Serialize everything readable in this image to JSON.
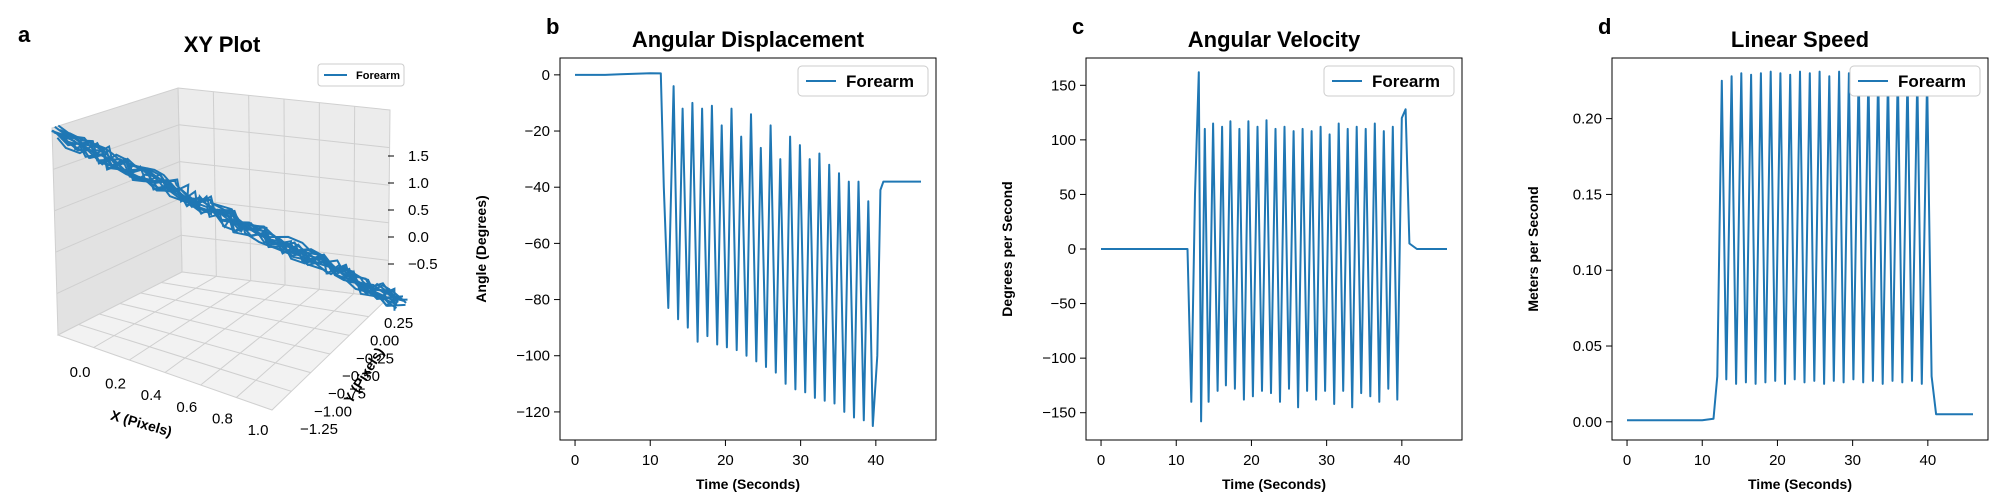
{
  "colors": {
    "series": "#1f77b4",
    "axis": "#000000",
    "pane": "#f2f2f2"
  },
  "chart_data": [
    {
      "panel_letter": "a",
      "type": "line",
      "projection": "3d",
      "title": "XY Plot",
      "xlabel": "X (Pixels)",
      "ylabel": "Y (Pixels)",
      "zlabel": "",
      "xticks": [
        "0.0",
        "0.2",
        "0.4",
        "0.6",
        "0.8",
        "1.0"
      ],
      "yticks": [
        "0.25",
        "0.00",
        "-0.25",
        "-0.50",
        "-0.75",
        "-1.00",
        "-1.25"
      ],
      "zticks": [
        "1.5",
        "1.0",
        "0.5",
        "0.0",
        "-0.5"
      ],
      "xlim": [
        0,
        1
      ],
      "ylim": [
        -1.25,
        0.25
      ],
      "zlim": [
        -0.5,
        1.5
      ],
      "legend": {
        "position": "top-right",
        "entries": [
          "Forearm"
        ]
      },
      "series": [
        {
          "name": "Forearm",
          "x": [
            0.0,
            0.1,
            0.2,
            0.3,
            0.4,
            0.5,
            0.6,
            0.7,
            0.8,
            0.9,
            1.0
          ],
          "y": [
            0.1,
            0.0,
            -0.1,
            -0.2,
            -0.3,
            -0.45,
            -0.6,
            -0.75,
            -0.9,
            -1.05,
            -1.2
          ],
          "z": [
            1.3,
            1.15,
            1.0,
            0.85,
            0.7,
            0.5,
            0.35,
            0.2,
            0.05,
            -0.15,
            -0.3
          ]
        }
      ]
    },
    {
      "panel_letter": "b",
      "type": "line",
      "title": "Angular Displacement",
      "xlabel": "Time (Seconds)",
      "ylabel": "Angle (Degrees)",
      "xlim": [
        -2,
        48
      ],
      "ylim": [
        -130,
        6
      ],
      "xticks": [
        0,
        10,
        20,
        30,
        40
      ],
      "yticks": [
        0,
        -20,
        -40,
        -60,
        -80,
        -100,
        -120
      ],
      "grid": false,
      "legend": {
        "position": "top-right",
        "entries": [
          "Forearm"
        ]
      },
      "series": [
        {
          "name": "Forearm",
          "x": [
            0,
            2,
            4,
            6,
            8,
            10,
            11.4,
            11.8,
            12.4,
            13.1,
            13.7,
            14.3,
            15.0,
            15.6,
            16.3,
            16.9,
            17.6,
            18.2,
            18.9,
            19.5,
            20.2,
            20.8,
            21.5,
            22.1,
            22.8,
            23.4,
            24.1,
            24.7,
            25.4,
            26.0,
            26.7,
            27.3,
            28.0,
            28.6,
            29.3,
            29.9,
            30.6,
            31.2,
            31.9,
            32.5,
            33.2,
            33.8,
            34.5,
            35.1,
            35.8,
            36.4,
            37.1,
            37.7,
            38.4,
            39.0,
            39.6,
            40.2,
            40.6,
            41.0,
            41.5,
            42.5,
            46
          ],
          "y": [
            0,
            0,
            0,
            0.2,
            0.4,
            0.6,
            0.5,
            -40,
            -83,
            -4,
            -87,
            -12,
            -90,
            -10,
            -95,
            -12,
            -93,
            -11,
            -96,
            -18,
            -97,
            -12,
            -98,
            -22,
            -100,
            -14,
            -102,
            -26,
            -104,
            -18,
            -106,
            -30,
            -110,
            -22,
            -112,
            -25,
            -113,
            -30,
            -115,
            -28,
            -116,
            -32,
            -117,
            -35,
            -120,
            -38,
            -122,
            -38,
            -123,
            -45,
            -125,
            -100,
            -41,
            -38,
            -38,
            -38,
            -38
          ]
        }
      ]
    },
    {
      "panel_letter": "c",
      "type": "line",
      "title": "Angular Velocity",
      "xlabel": "Time (Seconds)",
      "ylabel": "Degrees per Second",
      "xlim": [
        -2,
        48
      ],
      "ylim": [
        -175,
        175
      ],
      "xticks": [
        0,
        10,
        20,
        30,
        40
      ],
      "yticks": [
        150,
        100,
        50,
        0,
        -50,
        -100,
        -150
      ],
      "grid": false,
      "legend": {
        "position": "top-right",
        "entries": [
          "Forearm"
        ]
      },
      "series": [
        {
          "name": "Forearm",
          "x": [
            0,
            2,
            4,
            6,
            8,
            10,
            11.5,
            12.0,
            12.5,
            13.0,
            13.3,
            13.8,
            14.3,
            14.9,
            15.5,
            16.1,
            16.6,
            17.2,
            17.8,
            18.4,
            19.0,
            19.6,
            20.2,
            20.8,
            21.4,
            22.0,
            22.6,
            23.2,
            23.8,
            24.4,
            25.0,
            25.6,
            26.2,
            26.8,
            27.4,
            28.0,
            28.6,
            29.2,
            29.8,
            30.4,
            31.0,
            31.6,
            32.2,
            32.8,
            33.4,
            34.0,
            34.6,
            35.2,
            35.8,
            36.4,
            37.0,
            37.6,
            38.2,
            38.8,
            39.4,
            40.0,
            40.5,
            41.0,
            42,
            46
          ],
          "y": [
            0,
            0,
            0,
            0,
            0,
            0,
            0,
            -140,
            50,
            162,
            -158,
            110,
            -140,
            115,
            -130,
            112,
            -125,
            117,
            -128,
            110,
            -138,
            117,
            -135,
            112,
            -130,
            118,
            -132,
            110,
            -140,
            112,
            -128,
            108,
            -145,
            110,
            -130,
            108,
            -138,
            112,
            -130,
            105,
            -142,
            115,
            -130,
            110,
            -145,
            112,
            -132,
            110,
            -135,
            115,
            -140,
            108,
            -128,
            112,
            -138,
            120,
            128,
            5,
            0,
            0
          ]
        }
      ]
    },
    {
      "panel_letter": "d",
      "type": "line",
      "title": "Linear Speed",
      "xlabel": "Time (Seconds)",
      "ylabel": "Meters per Second",
      "xlim": [
        -2,
        48
      ],
      "ylim": [
        -0.012,
        0.24
      ],
      "xticks": [
        0,
        10,
        20,
        30,
        40
      ],
      "yticks": [
        0.0,
        0.05,
        0.1,
        0.15,
        0.2
      ],
      "ytick_labels": [
        "0.00",
        "0.05",
        "0.10",
        "0.15",
        "0.20"
      ],
      "grid": false,
      "legend": {
        "position": "top-right",
        "entries": [
          "Forearm"
        ]
      },
      "series": [
        {
          "name": "Forearm",
          "x": [
            0,
            2,
            4,
            6,
            8,
            10,
            11.5,
            12.0,
            12.6,
            13.2,
            13.9,
            14.5,
            15.2,
            15.8,
            16.5,
            17.1,
            17.8,
            18.4,
            19.1,
            19.7,
            20.4,
            21.0,
            21.7,
            22.3,
            23.0,
            23.6,
            24.3,
            24.9,
            25.6,
            26.2,
            26.9,
            27.5,
            28.2,
            28.8,
            29.5,
            30.1,
            30.8,
            31.4,
            32.1,
            32.7,
            33.4,
            34.0,
            34.7,
            35.3,
            36.0,
            36.6,
            37.3,
            37.9,
            38.6,
            39.2,
            39.9,
            40.5,
            41.1,
            41.6,
            42.5,
            46
          ],
          "y": [
            0.001,
            0.001,
            0.001,
            0.001,
            0.001,
            0.001,
            0.002,
            0.03,
            0.225,
            0.028,
            0.228,
            0.025,
            0.23,
            0.026,
            0.229,
            0.025,
            0.23,
            0.026,
            0.231,
            0.027,
            0.23,
            0.025,
            0.229,
            0.028,
            0.231,
            0.026,
            0.23,
            0.027,
            0.231,
            0.025,
            0.228,
            0.027,
            0.231,
            0.026,
            0.23,
            0.028,
            0.232,
            0.026,
            0.23,
            0.027,
            0.231,
            0.025,
            0.229,
            0.027,
            0.232,
            0.026,
            0.23,
            0.027,
            0.228,
            0.025,
            0.227,
            0.03,
            0.005,
            0.005,
            0.005,
            0.005
          ]
        }
      ]
    }
  ]
}
